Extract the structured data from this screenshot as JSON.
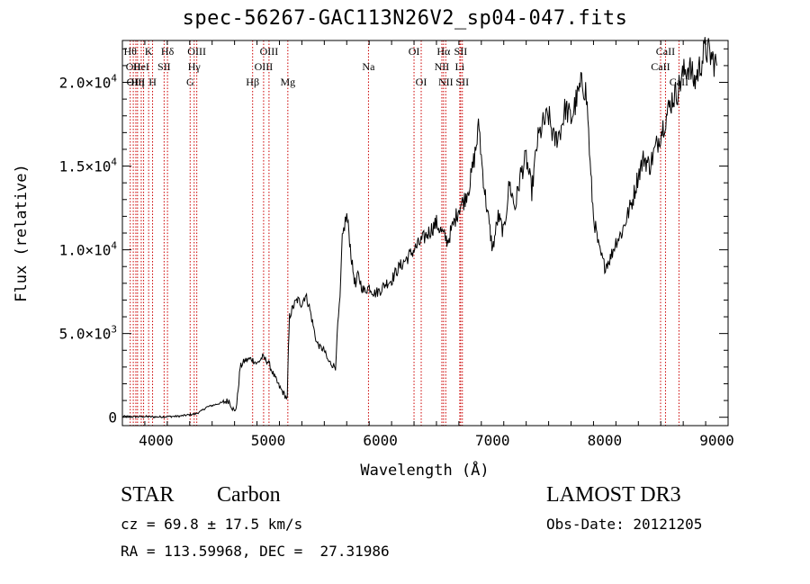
{
  "title": "spec-56267-GAC113N26V2_sp04-047.fits",
  "chart_data": {
    "type": "line",
    "title": "spec-56267-GAC113N26V2_sp04-047.fits",
    "xlabel": "Wavelength (Å)",
    "ylabel": "Flux (relative)",
    "xlim": [
      3700,
      9100
    ],
    "ylim": [
      -500,
      22500
    ],
    "x_ticks": [
      4000,
      5000,
      6000,
      7000,
      8000,
      9000
    ],
    "x_tick_labels": [
      "4000",
      "5000",
      "6000",
      "7000",
      "8000",
      "9000"
    ],
    "y_ticks": [
      0,
      5000,
      10000,
      15000,
      20000
    ],
    "y_tick_labels": [
      {
        "mantissa": "0",
        "exp": ""
      },
      {
        "mantissa": "5.0×10",
        "exp": "3"
      },
      {
        "mantissa": "1.0×10",
        "exp": "4"
      },
      {
        "mantissa": "1.5×10",
        "exp": "4"
      },
      {
        "mantissa": "2.0×10",
        "exp": "4"
      }
    ],
    "series": [
      {
        "name": "flux",
        "x": [
          3700,
          3800,
          3900,
          4000,
          4100,
          4200,
          4300,
          4350,
          4400,
          4450,
          4500,
          4550,
          4600,
          4650,
          4700,
          4720,
          4750,
          4780,
          4800,
          4850,
          4900,
          4950,
          5000,
          5050,
          5100,
          5150,
          5170,
          5180,
          5190,
          5200,
          5230,
          5260,
          5300,
          5330,
          5360,
          5400,
          5430,
          5460,
          5500,
          5530,
          5560,
          5600,
          5620,
          5640,
          5660,
          5680,
          5700,
          5720,
          5750,
          5780,
          5800,
          5850,
          5900,
          5950,
          6000,
          6050,
          6100,
          6150,
          6200,
          6250,
          6300,
          6350,
          6400,
          6450,
          6500,
          6550,
          6600,
          6650,
          6700,
          6750,
          6800,
          6850,
          6880,
          6900,
          6930,
          6960,
          7000,
          7050,
          7100,
          7150,
          7200,
          7250,
          7300,
          7350,
          7400,
          7450,
          7500,
          7550,
          7600,
          7650,
          7700,
          7750,
          7800,
          7830,
          7850,
          7870,
          7900,
          7950,
          8000,
          8050,
          8100,
          8150,
          8200,
          8250,
          8300,
          8350,
          8400,
          8450,
          8500,
          8550,
          8600,
          8650,
          8700,
          8750,
          8800,
          8850,
          8900,
          8950,
          9000
        ],
        "y": [
          50,
          30,
          40,
          20,
          40,
          60,
          150,
          200,
          350,
          600,
          700,
          800,
          900,
          1000,
          300,
          800,
          3000,
          3300,
          3400,
          3500,
          3200,
          3600,
          3300,
          2500,
          1800,
          1300,
          1100,
          4000,
          6000,
          6200,
          6700,
          7000,
          6800,
          7300,
          6800,
          5500,
          4500,
          4200,
          4000,
          3400,
          3200,
          3000,
          5500,
          7000,
          10500,
          11500,
          12000,
          11000,
          9000,
          7800,
          8500,
          7500,
          7800,
          7400,
          7600,
          8000,
          8200,
          8800,
          9200,
          9600,
          10000,
          10400,
          10800,
          11200,
          11600,
          11000,
          10500,
          11500,
          12500,
          13000,
          14000,
          16000,
          17500,
          15500,
          13500,
          12000,
          10000,
          12000,
          11000,
          14000,
          12500,
          14500,
          15500,
          13500,
          16500,
          17500,
          18000,
          16500,
          17000,
          18500,
          17800,
          19000,
          20000,
          19500,
          18000,
          15000,
          12000,
          10000,
          9000,
          9500,
          10500,
          11000,
          12000,
          13000,
          14500,
          15500,
          15000,
          16000,
          17000,
          18000,
          19000,
          19500,
          20500,
          21000,
          20000,
          21000,
          22000,
          21500,
          21000
        ]
      }
    ],
    "lines": [
      {
        "x": 3770,
        "labels": [
          "Hθ"
        ],
        "rows": [
          0
        ]
      },
      {
        "x": 3797,
        "labels": [
          "OII"
        ],
        "rows": [
          1
        ]
      },
      {
        "x": 3820,
        "labels": [
          "OIII"
        ],
        "rows": [
          2
        ]
      },
      {
        "x": 3835,
        "labels": [
          "Hη"
        ],
        "rows": [
          2
        ]
      },
      {
        "x": 3868,
        "labels": [
          "HeI"
        ],
        "rows": [
          1
        ]
      },
      {
        "x": 3889,
        "labels": [],
        "rows": []
      },
      {
        "x": 3934,
        "labels": [
          "K"
        ],
        "rows": [
          0
        ]
      },
      {
        "x": 3969,
        "labels": [
          "H"
        ],
        "rows": [
          2
        ]
      },
      {
        "x": 4072,
        "labels": [
          "SII"
        ],
        "rows": [
          1
        ]
      },
      {
        "x": 4102,
        "labels": [
          "Hδ"
        ],
        "rows": [
          0
        ]
      },
      {
        "x": 4304,
        "labels": [
          "G"
        ],
        "rows": [
          2
        ]
      },
      {
        "x": 4340,
        "labels": [
          "Hγ"
        ],
        "rows": [
          1
        ]
      },
      {
        "x": 4363,
        "labels": [
          "OIII"
        ],
        "rows": [
          0
        ]
      },
      {
        "x": 4861,
        "labels": [
          "Hβ"
        ],
        "rows": [
          2
        ]
      },
      {
        "x": 4959,
        "labels": [
          "OIII"
        ],
        "rows": [
          1
        ]
      },
      {
        "x": 5007,
        "labels": [
          "OIII"
        ],
        "rows": [
          0
        ]
      },
      {
        "x": 5175,
        "labels": [
          "Mg"
        ],
        "rows": [
          2
        ]
      },
      {
        "x": 5894,
        "labels": [
          "Na"
        ],
        "rows": [
          1
        ]
      },
      {
        "x": 6300,
        "labels": [
          "OI"
        ],
        "rows": [
          0
        ]
      },
      {
        "x": 6364,
        "labels": [
          "OI"
        ],
        "rows": [
          2
        ]
      },
      {
        "x": 6548,
        "labels": [
          "NII"
        ],
        "rows": [
          1
        ]
      },
      {
        "x": 6563,
        "labels": [
          "Hα"
        ],
        "rows": [
          0
        ]
      },
      {
        "x": 6583,
        "labels": [
          "NII"
        ],
        "rows": [
          2
        ]
      },
      {
        "x": 6708,
        "labels": [
          "Li"
        ],
        "rows": [
          1
        ]
      },
      {
        "x": 6716,
        "labels": [
          "SII"
        ],
        "rows": [
          0
        ]
      },
      {
        "x": 6731,
        "labels": [
          "SII"
        ],
        "rows": [
          2
        ]
      },
      {
        "x": 8498,
        "labels": [
          "CaII"
        ],
        "rows": [
          1
        ]
      },
      {
        "x": 8542,
        "labels": [
          "CaII"
        ],
        "rows": [
          0
        ]
      },
      {
        "x": 8662,
        "labels": [
          "CaII"
        ],
        "rows": [
          2
        ]
      }
    ]
  },
  "info": {
    "class": "STAR",
    "subclass": "Carbon",
    "cz": "cz = 69.8 ± 17.5 km/s",
    "radec": "RA = 113.59968, DEC =  27.31986",
    "survey": "LAMOST DR3",
    "obs_date": "Obs-Date: 20121205"
  },
  "colors": {
    "axis": "#000000",
    "line": "#000000",
    "marker": "#cc0000"
  }
}
